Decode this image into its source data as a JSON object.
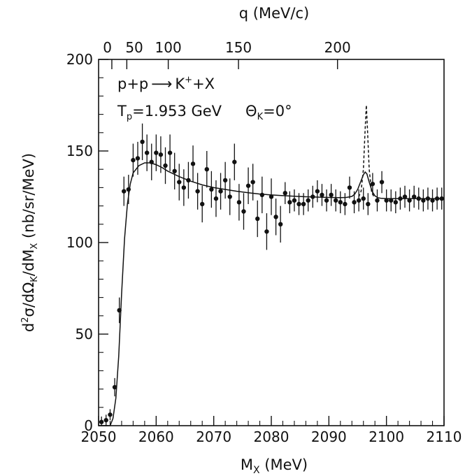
{
  "chart_data": {
    "type": "scatter",
    "title": "",
    "xlabel_main": "M",
    "xlabel_sub": "X",
    "xlabel_unit": " (MeV)",
    "ylabel_parts": {
      "d2": "d",
      "two": "2",
      "sigma_over": "σ/dΩ",
      "k": "K",
      "over_dm": "/dM",
      "x": "X",
      "unit": " (nb/sr/MeV)"
    },
    "top_axis_label": "q  (MeV/c)",
    "xlim": [
      2050,
      2110
    ],
    "ylim": [
      0,
      200
    ],
    "x_ticks": [
      2050,
      2060,
      2070,
      2080,
      2090,
      2100,
      2110
    ],
    "y_ticks": [
      0,
      50,
      100,
      150,
      200
    ],
    "top_ticks": [
      {
        "label": "0",
        "mx": 2052.3
      },
      {
        "label": "50",
        "mx": 2054.9
      },
      {
        "label": "100",
        "mx": 2062.1
      },
      {
        "label": "150",
        "mx": 2074.3
      },
      {
        "label": "200",
        "mx": 2091.5
      }
    ],
    "annotations": {
      "reaction": {
        "lhs": "p+p",
        "arrow": "⟶",
        "rhs_k": "K",
        "rhs_plus_sup": "+",
        "rhs_x": "+X"
      },
      "beam": {
        "t": "T",
        "p": "p",
        "value": "=1.953 GeV",
        "theta": "Θ",
        "k": "K",
        "theta_value": "=0°"
      }
    },
    "series": [
      {
        "type": "points_with_errors",
        "x": [
          2050.5,
          2051.3,
          2052.0,
          2052.8,
          2053.6,
          2054.4,
          2055.2,
          2056.0,
          2056.8,
          2057.6,
          2058.4,
          2059.2,
          2060.0,
          2060.8,
          2061.6,
          2062.4,
          2063.2,
          2064.0,
          2064.8,
          2065.6,
          2066.4,
          2067.2,
          2068.0,
          2068.8,
          2069.6,
          2070.4,
          2071.2,
          2072.0,
          2072.8,
          2073.6,
          2074.4,
          2075.2,
          2076.0,
          2076.8,
          2077.6,
          2078.4,
          2079.2,
          2080.0,
          2080.8,
          2081.6,
          2082.4,
          2083.2,
          2084.0,
          2084.8,
          2085.6,
          2086.4,
          2087.2,
          2088.0,
          2088.8,
          2089.6,
          2090.4,
          2091.2,
          2092.0,
          2092.8,
          2093.6,
          2094.4,
          2095.2,
          2096.0,
          2096.8,
          2097.6,
          2098.4,
          2099.2,
          2100.0,
          2100.8,
          2101.6,
          2102.4,
          2103.2,
          2104.0,
          2104.8,
          2105.6,
          2106.4,
          2107.2,
          2108.0,
          2108.8,
          2109.6
        ],
        "y": [
          2,
          3,
          6,
          21,
          63,
          128,
          129,
          145,
          146,
          155,
          149,
          144,
          149,
          148,
          142,
          149,
          139,
          133,
          130,
          134,
          143,
          128,
          121,
          140,
          129,
          124,
          128,
          134,
          125,
          144,
          122,
          117,
          131,
          133,
          113,
          126,
          106,
          125,
          114,
          110,
          127,
          122,
          123,
          121,
          121,
          123,
          125,
          128,
          126,
          123,
          126,
          123,
          122,
          121,
          130,
          122,
          123,
          124,
          121,
          132,
          123,
          133,
          123,
          123,
          122,
          124,
          125,
          123,
          125,
          124,
          123,
          124,
          123,
          124,
          124
        ],
        "yerr": [
          3,
          3,
          3,
          5,
          7,
          8,
          8,
          9,
          9,
          10,
          10,
          10,
          10,
          10,
          10,
          10,
          10,
          10,
          10,
          10,
          10,
          10,
          10,
          10,
          10,
          10,
          10,
          10,
          10,
          10,
          10,
          10,
          10,
          10,
          10,
          10,
          10,
          10,
          10,
          10,
          6,
          6,
          6,
          6,
          6,
          6,
          6,
          6,
          6,
          6,
          6,
          6,
          6,
          6,
          6,
          6,
          6,
          6,
          6,
          6,
          6,
          6,
          6,
          6,
          6,
          6,
          6,
          6,
          6,
          6,
          6,
          6,
          6,
          6,
          6
        ]
      },
      {
        "type": "solid_curve",
        "x": [
          2050,
          2051,
          2051.5,
          2052,
          2052.5,
          2053,
          2053.5,
          2054,
          2054.5,
          2055,
          2055.5,
          2056,
          2057,
          2058,
          2059,
          2060,
          2061,
          2062,
          2064,
          2066,
          2068,
          2070,
          2072,
          2074,
          2076,
          2078,
          2080,
          2082,
          2084,
          2086,
          2088,
          2090,
          2092,
          2093,
          2094,
          2094.5,
          2095,
          2095.5,
          2096,
          2096.3,
          2096.6,
          2097,
          2097.5,
          2098,
          2098.5,
          2099,
          2100,
          2102,
          2104,
          2106,
          2108,
          2110
        ],
        "y": [
          0,
          0,
          0,
          0,
          4,
          15,
          38,
          72,
          102,
          121,
          132,
          138,
          142,
          143.5,
          143.5,
          142.5,
          141,
          139,
          136,
          133.5,
          131.5,
          130,
          129,
          128,
          127.2,
          126.5,
          126,
          125.6,
          125.3,
          125,
          124.8,
          124.6,
          124.5,
          124.6,
          125.2,
          126.5,
          129,
          133,
          137,
          138.5,
          137.5,
          133,
          128,
          125.5,
          124.5,
          124.2,
          124,
          124,
          124,
          124,
          124,
          124
        ]
      },
      {
        "type": "dashed_peak",
        "x": [
          2095.2,
          2095.6,
          2096,
          2096.3,
          2096.5,
          2096.7,
          2097,
          2097.4,
          2097.8
        ],
        "y": [
          125,
          128,
          140,
          162,
          175,
          162,
          140,
          128,
          125
        ]
      }
    ]
  }
}
